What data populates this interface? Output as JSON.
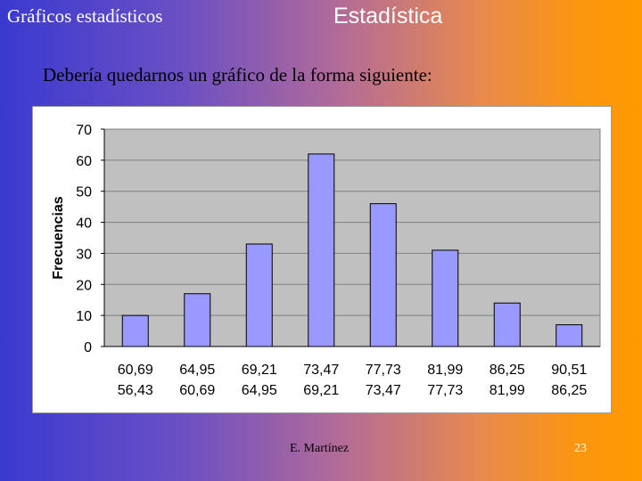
{
  "slide": {
    "section": "Gráficos estadísticos",
    "title": "Estadística",
    "subtitle": "Debería quedarnos un gráfico de la forma siguiente:",
    "author": "E. Martínez",
    "page": "23"
  },
  "colors": {
    "bar_fill": "#9999ff",
    "plot_bg": "#c0c0c0",
    "footer_page": "#ffffff"
  },
  "chart_data": {
    "type": "bar",
    "categories": [
      [
        "60,69",
        "56,43"
      ],
      [
        "64,95",
        "60,69"
      ],
      [
        "69,21",
        "64,95"
      ],
      [
        "73,47",
        "69,21"
      ],
      [
        "77,73",
        "73,47"
      ],
      [
        "81,99",
        "77,73"
      ],
      [
        "86,25",
        "81,99"
      ],
      [
        "90,51",
        "86,25"
      ]
    ],
    "values": [
      10,
      17,
      33,
      62,
      46,
      31,
      14,
      7
    ],
    "ylabel": "Frecuencias",
    "xlabel": "",
    "title": "",
    "ylim": [
      0,
      70
    ],
    "yticks": [
      "0",
      "10",
      "20",
      "30",
      "40",
      "50",
      "60",
      "70"
    ],
    "grid": true
  }
}
